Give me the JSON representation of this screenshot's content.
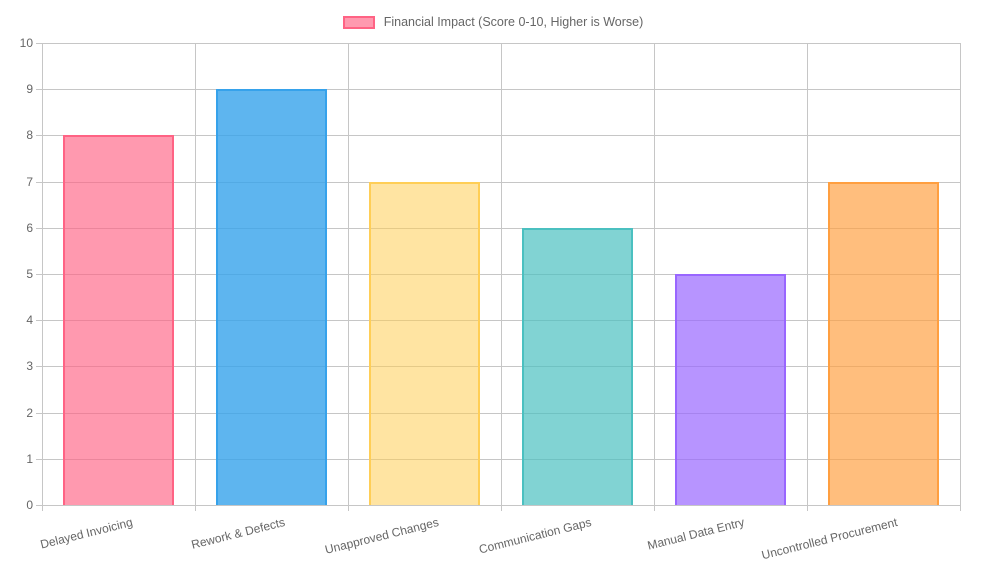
{
  "chart_data": {
    "type": "bar",
    "title": "",
    "legend": "Financial Impact (Score 0-10, Higher is Worse)",
    "legend_position": "top",
    "legend_swatch_fill": "rgba(255,99,132,0.65)",
    "legend_swatch_border": "#FF6384",
    "categories": [
      "Delayed Invoicing",
      "Rework & Defects",
      "Unapproved Changes",
      "Communication Gaps",
      "Manual Data Entry",
      "Uncontrolled Procurement"
    ],
    "values": [
      8,
      9,
      7,
      6,
      5,
      7
    ],
    "bar_colors": [
      "rgba(255,99,132,0.65)",
      "rgba(54,162,235,0.8)",
      "rgba(255,206,86,0.55)",
      "rgba(75,192,192,0.7)",
      "rgba(153,102,255,0.7)",
      "rgba(255,159,64,0.68)"
    ],
    "bar_borders": [
      "#FF6384",
      "#36A2EB",
      "#FFCE56",
      "#4BC0C0",
      "#9966FF",
      "#FF9F40"
    ],
    "xlabel": "",
    "ylabel": "",
    "ylim": [
      0,
      10
    ],
    "yticks": [
      0,
      1,
      2,
      3,
      4,
      5,
      6,
      7,
      8,
      9,
      10
    ],
    "grid": true
  }
}
